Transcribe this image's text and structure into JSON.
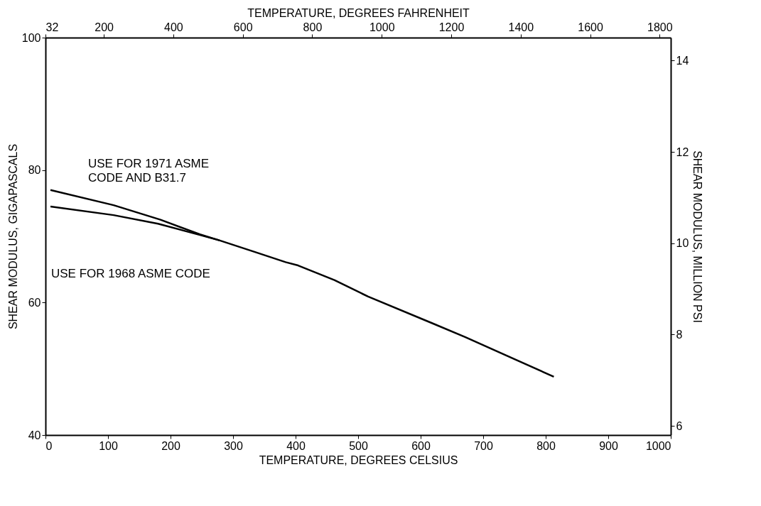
{
  "chart_data": {
    "type": "line",
    "xlabel": "TEMPERATURE, DEGREES CELSIUS",
    "ylabel": "SHEAR MODULUS, GIGAPASCALS",
    "y2label": "SHEAR MODULUS, MILLION PSI",
    "x2label": "TEMPERATURE, DEGREES FAHRENHEIT",
    "xlim": [
      0,
      1000
    ],
    "xticks": [
      0,
      100,
      200,
      300,
      400,
      500,
      600,
      700,
      800,
      900,
      1000
    ],
    "ylim": [
      40,
      100
    ],
    "yticks": [
      40,
      60,
      80,
      100
    ],
    "y2lim": [
      5.801,
      14.503
    ],
    "y2ticks": [
      6,
      8,
      10,
      12,
      14
    ],
    "x2lim": [
      32,
      1832
    ],
    "x2ticks": [
      32,
      200,
      400,
      600,
      800,
      1000,
      1200,
      1400,
      1600,
      1800
    ],
    "grid": false,
    "line_style": "solid",
    "marker": "none",
    "series": [
      {
        "color": "#000000",
        "x": [
          8,
          109,
          184,
          247,
          278,
          336,
          384,
          404,
          462,
          516,
          618,
          671,
          813
        ],
        "values": [
          77.0,
          74.7,
          72.5,
          70.3,
          69.4,
          67.6,
          66.1,
          65.6,
          63.4,
          60.9,
          56.9,
          54.8,
          48.8
        ]
      },
      {
        "color": "#000000",
        "x": [
          8,
          109,
          180,
          247,
          278
        ],
        "values": [
          74.5,
          73.2,
          71.9,
          70.2,
          69.4
        ]
      }
    ],
    "annotations": [
      "USE FOR 1971 ASME\nCODE AND B31.7",
      "USE FOR 1968 ASME CODE"
    ]
  }
}
